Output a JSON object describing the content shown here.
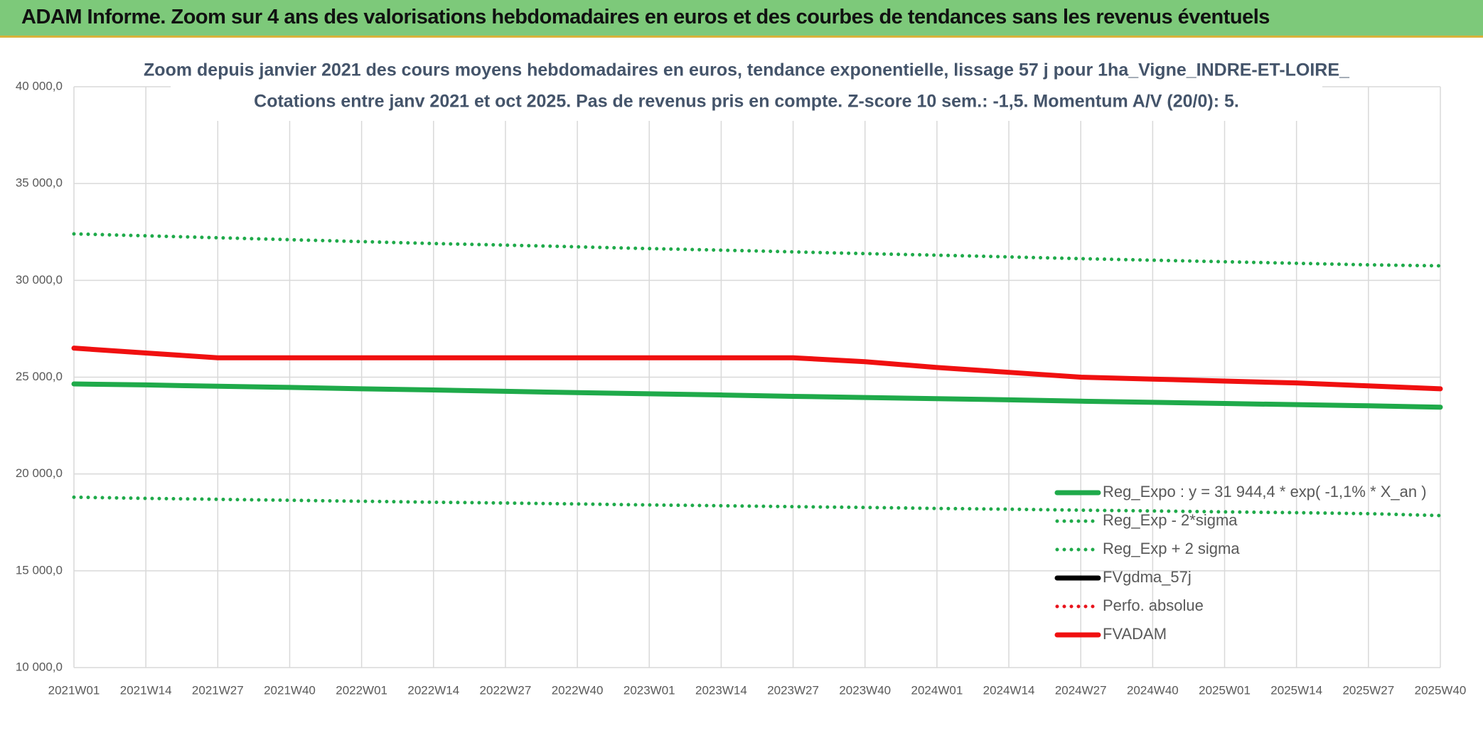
{
  "header": {
    "title": "ADAM Informe. Zoom sur 4 ans des valorisations hebdomadaires en euros et des courbes de tendances sans les revenus éventuels"
  },
  "chart_data": {
    "type": "line",
    "title": "Zoom depuis janvier 2021 des cours moyens hebdomadaires en euros, tendance exponentielle, lissage 57 j pour 1ha_Vigne_INDRE-ET-LOIRE_",
    "subtitle": "Cotations entre janv 2021 et oct 2025. Pas de revenus pris en compte. Z-score 10 sem.: -1,5. Momentum A/V (20/0): 5.",
    "categories": [
      "2021W01",
      "2021W14",
      "2021W27",
      "2021W40",
      "2022W01",
      "2022W14",
      "2022W27",
      "2022W40",
      "2023W01",
      "2023W14",
      "2023W27",
      "2023W40",
      "2024W01",
      "2024W14",
      "2024W27",
      "2024W40",
      "2025W01",
      "2025W14",
      "2025W27",
      "2025W40"
    ],
    "series": [
      {
        "name": "Reg_Expo : y = 31 944,4 * exp( -1,1% *  X_an )",
        "color": "#1faa4a",
        "line_style": "solid",
        "values": [
          24650,
          24600,
          24530,
          24470,
          24400,
          24340,
          24270,
          24200,
          24140,
          24080,
          24010,
          23950,
          23890,
          23830,
          23760,
          23700,
          23640,
          23580,
          23520,
          23450
        ]
      },
      {
        "name": "Reg_Exp - 2*sigma",
        "color": "#1faa4a",
        "line_style": "dotted",
        "values": [
          18800,
          18740,
          18690,
          18640,
          18590,
          18540,
          18500,
          18450,
          18400,
          18360,
          18310,
          18270,
          18220,
          18180,
          18130,
          18090,
          18040,
          18000,
          17950,
          17850
        ]
      },
      {
        "name": "Reg_Exp + 2 sigma",
        "color": "#1faa4a",
        "line_style": "dotted",
        "values": [
          32400,
          32300,
          32200,
          32100,
          32000,
          31900,
          31820,
          31730,
          31640,
          31560,
          31470,
          31380,
          31300,
          31210,
          31120,
          31040,
          30960,
          30880,
          30800,
          30750
        ]
      },
      {
        "name": "FVgdma_57j",
        "color": "#000000",
        "line_style": "solid",
        "values": [
          null,
          null,
          null,
          null,
          null,
          null,
          null,
          null,
          null,
          null,
          null,
          null,
          null,
          null,
          null,
          null,
          null,
          null,
          null,
          null
        ]
      },
      {
        "name": "Perfo. absolue",
        "color": "#e8141c",
        "line_style": "dotted",
        "values": [
          null,
          null,
          null,
          null,
          null,
          null,
          null,
          null,
          null,
          null,
          null,
          null,
          null,
          null,
          null,
          null,
          null,
          null,
          null,
          null
        ]
      },
      {
        "name": "FVADAM",
        "color": "#f01010",
        "line_style": "solid",
        "values": [
          26500,
          26250,
          26000,
          26000,
          26000,
          26000,
          26000,
          26000,
          26000,
          26000,
          26000,
          25800,
          25500,
          25250,
          25000,
          24900,
          24800,
          24700,
          24550,
          24400
        ]
      }
    ],
    "ylim": [
      10000,
      40000
    ],
    "yticks": [
      {
        "value": 10000,
        "label": "10 000,0"
      },
      {
        "value": 15000,
        "label": "15 000,0"
      },
      {
        "value": 20000,
        "label": "20 000,0"
      },
      {
        "value": 25000,
        "label": "25 000,0"
      },
      {
        "value": 30000,
        "label": "30 000,0"
      },
      {
        "value": 35000,
        "label": "35 000,0"
      },
      {
        "value": 40000,
        "label": "40 000,0"
      }
    ],
    "grid": true
  }
}
